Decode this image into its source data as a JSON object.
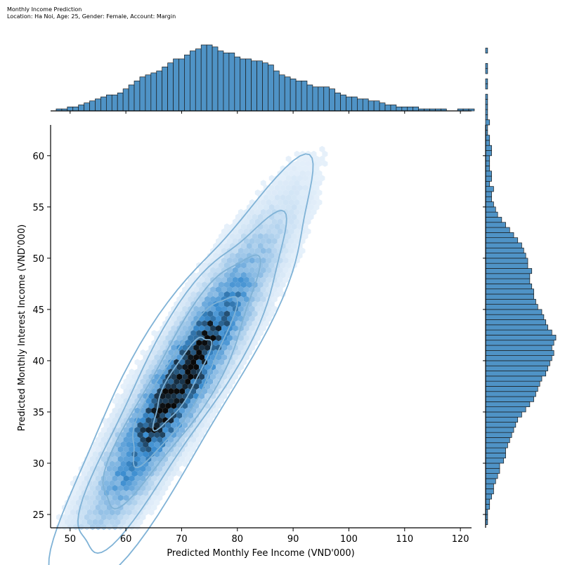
{
  "title": "Monthly Income Prediction",
  "subtitle": "Location: Ha Noi, Age: 25, Gender: Female, Account: Margin",
  "colors": {
    "hist_fill": "#4f93c6",
    "hist_edge": "#1a1a1a",
    "hex_light": "#ecf4fc",
    "hex_mid": "#3b8dd0",
    "hex_dark": "#0a0a0a",
    "contour": "#7fb2d6"
  },
  "chart_data": {
    "type": "jointplot-hexbin-kde",
    "xlabel": "Predicted Monthly Fee Income (VND'000)",
    "ylabel": "Predicted Monthly Interest Income (VND'000)",
    "xlim": [
      46.5,
      122
    ],
    "ylim": [
      23.7,
      63
    ],
    "x_ticks": [
      50,
      60,
      70,
      80,
      90,
      100,
      110,
      120
    ],
    "y_ticks": [
      25,
      30,
      35,
      40,
      45,
      50,
      55,
      60
    ],
    "grid": false,
    "legend": "none",
    "joint_center": {
      "x": 70,
      "y": 38
    },
    "top_histogram": {
      "bin_start": 47.5,
      "bin_width": 1,
      "counts": [
        1,
        1,
        2,
        2,
        3,
        4,
        5,
        6,
        7,
        8,
        8,
        9,
        11,
        13,
        15,
        17,
        18,
        19,
        20,
        22,
        24,
        26,
        26,
        28,
        30,
        31,
        33,
        33,
        32,
        30,
        29,
        29,
        27,
        26,
        26,
        25,
        25,
        24,
        23,
        20,
        18,
        17,
        16,
        15,
        15,
        13,
        12,
        12,
        12,
        11,
        9,
        8,
        7,
        7,
        6,
        6,
        5,
        5,
        4,
        3,
        3,
        2,
        2,
        2,
        2,
        1,
        1,
        1,
        1,
        1,
        0,
        0,
        1,
        1,
        1
      ]
    },
    "right_histogram": {
      "bin_start": 24,
      "bin_width": 0.5,
      "counts": [
        1,
        1,
        1,
        2,
        2,
        3,
        4,
        4,
        5,
        6,
        7,
        7,
        9,
        10,
        10,
        11,
        12,
        13,
        14,
        15,
        16,
        18,
        20,
        22,
        24,
        25,
        26,
        27,
        28,
        30,
        31,
        32,
        33,
        34,
        33,
        34,
        35,
        33,
        31,
        30,
        29,
        28,
        26,
        25,
        24,
        24,
        23,
        22,
        22,
        23,
        21,
        21,
        20,
        19,
        18,
        16,
        14,
        12,
        10,
        8,
        6,
        5,
        4,
        3,
        3,
        4,
        2,
        3,
        3,
        2,
        2,
        2,
        3,
        3,
        2,
        2,
        1,
        1,
        2,
        1,
        1,
        1,
        1,
        1,
        0,
        1,
        1,
        0,
        1,
        1,
        0,
        0,
        1,
        0,
        0,
        0,
        0
      ]
    }
  }
}
